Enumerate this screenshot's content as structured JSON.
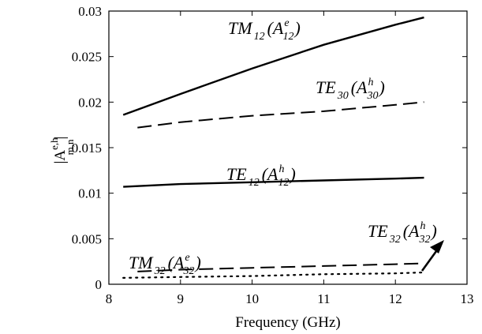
{
  "chart_data": {
    "type": "line",
    "xlabel": "Frequency (GHz)",
    "ylabel": {
      "base": "|A",
      "sup": "e,h",
      "sub": "m,n",
      "close": "|"
    },
    "xlim": [
      8,
      13
    ],
    "ylim": [
      0,
      0.03
    ],
    "x_ticks": [
      "8",
      "9",
      "10",
      "11",
      "12",
      "13"
    ],
    "y_ticks": [
      "0",
      "0.005",
      "0.01",
      "0.015",
      "0.02",
      "0.025",
      "0.03"
    ],
    "grid": false,
    "series": [
      {
        "style": "solid",
        "x": [
          8.2,
          9,
          10,
          11,
          12,
          12.4
        ],
        "y": [
          0.0186,
          0.0209,
          0.0237,
          0.0263,
          0.0285,
          0.0293
        ]
      },
      {
        "style": "dashed",
        "x": [
          8.4,
          9,
          10,
          11,
          12,
          12.4
        ],
        "y": [
          0.0172,
          0.0178,
          0.0185,
          0.019,
          0.0197,
          0.02
        ]
      },
      {
        "style": "solid",
        "x": [
          8.2,
          9,
          10,
          11,
          12,
          12.4
        ],
        "y": [
          0.0107,
          0.011,
          0.0112,
          0.0114,
          0.0116,
          0.0117
        ]
      },
      {
        "style": "dashed",
        "x": [
          8.4,
          9,
          10,
          11,
          12,
          12.4
        ],
        "y": [
          0.0014,
          0.0016,
          0.0018,
          0.002,
          0.0022,
          0.0023
        ]
      },
      {
        "style": "dotted",
        "x": [
          8.2,
          9,
          10,
          11,
          12,
          12.4
        ],
        "y": [
          0.0007,
          0.0008,
          0.0009,
          0.0011,
          0.0012,
          0.0013
        ]
      }
    ],
    "annotations": [
      {
        "main": "TM",
        "sub": "12",
        "amp_sup": "e",
        "amp_sub": "12"
      },
      {
        "main": "TE",
        "sub": "30",
        "amp_sup": "h",
        "amp_sub": "30"
      },
      {
        "main": "TE",
        "sub": "12",
        "amp_sup": "h",
        "amp_sub": "12"
      },
      {
        "main": "TM",
        "sub": "32",
        "amp_sup": "e",
        "amp_sub": "32"
      },
      {
        "main": "TE",
        "sub": "32",
        "amp_sup": "h",
        "amp_sub": "32"
      }
    ]
  }
}
